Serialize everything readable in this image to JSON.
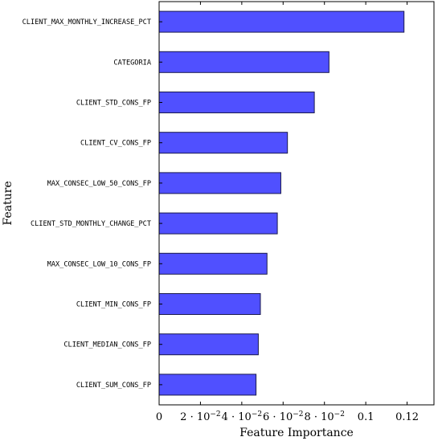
{
  "chart_data": {
    "type": "bar",
    "orientation": "horizontal",
    "xlabel": "Feature Importance",
    "ylabel": "Feature",
    "xlim": [
      0,
      0.133
    ],
    "categories": [
      "CLIENT_MAX_MONTHLY_INCREASE_PCT",
      "CATEGORIA",
      "CLIENT_STD_CONS_FP",
      "CLIENT_CV_CONS_FP",
      "MAX_CONSEC_LOW_50_CONS_FP",
      "CLIENT_STD_MONTHLY_CHANGE_PCT",
      "MAX_CONSEC_LOW_10_CONS_FP",
      "CLIENT_MIN_CONS_FP",
      "CLIENT_MEDIAN_CONS_FP",
      "CLIENT_SUM_CONS_FP"
    ],
    "values": [
      0.1185,
      0.0822,
      0.0751,
      0.0621,
      0.0589,
      0.0572,
      0.0522,
      0.049,
      0.048,
      0.0469
    ],
    "xticks": [
      {
        "value": 0,
        "main": "0",
        "sup": ""
      },
      {
        "value": 0.02,
        "main": "2 · 10",
        "sup": "−2"
      },
      {
        "value": 0.04,
        "main": "4 · 10",
        "sup": "−2"
      },
      {
        "value": 0.06,
        "main": "6 · 10",
        "sup": "−2"
      },
      {
        "value": 0.08,
        "main": "8 · 10",
        "sup": "−2"
      },
      {
        "value": 0.1,
        "main": "0.1",
        "sup": ""
      },
      {
        "value": 0.12,
        "main": "0.12",
        "sup": ""
      }
    ],
    "bar_color": "#5050ff",
    "bar_edge_color": "#1a1a4d",
    "grid": false,
    "legend": "none"
  }
}
